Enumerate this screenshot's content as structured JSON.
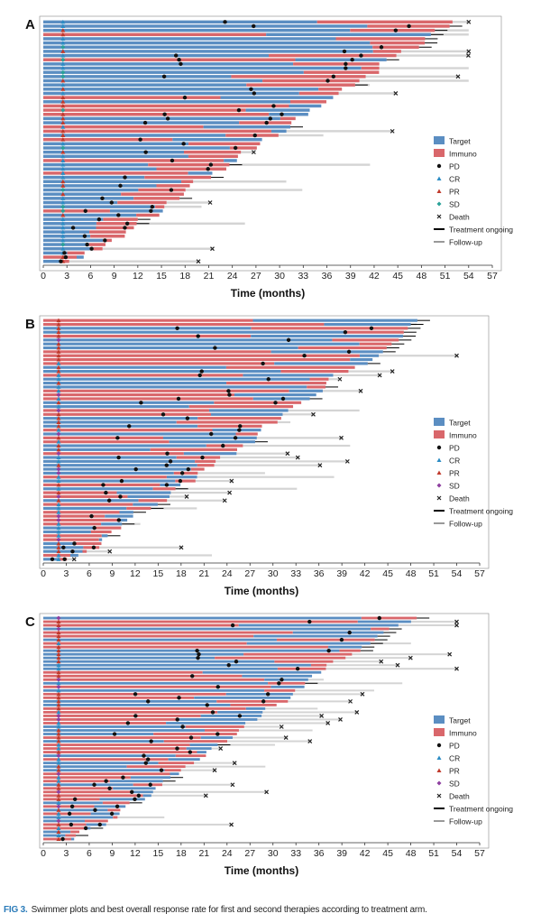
{
  "caption": {
    "figure_label": "FIG 3.",
    "text": "Swimmer plots and best overall response rate for first and second therapies according to treatment arm."
  },
  "colors": {
    "target": "#5b8ec2",
    "immuno": "#d9676b",
    "followup": "#d4d4d4",
    "pd": "#111111",
    "cr": "#2b8cc4",
    "pr": "#c0392b",
    "sd_a": "#2aa198",
    "sd_bc": "#8e3fa0",
    "death": "#222222",
    "ongoing": "#000000"
  },
  "chart_data": [
    {
      "panel": "A",
      "type": "swimmer",
      "xlabel": "Time (months)",
      "xlim": [
        0,
        57
      ],
      "xticks": [
        0,
        3,
        6,
        9,
        12,
        15,
        18,
        21,
        24,
        27,
        30,
        33,
        36,
        39,
        42,
        45,
        48,
        51,
        54,
        57
      ],
      "legend": [
        "Target",
        "Immuno",
        "PD",
        "CR",
        "PR",
        "SD",
        "Death",
        "Treatment ongoing",
        "Follow-up"
      ],
      "sd_color": "sd_a",
      "n_patients": 58,
      "treatment_start": 2.5,
      "seed": 11
    },
    {
      "panel": "B",
      "type": "swimmer",
      "xlabel": "Time (months)",
      "xlim": [
        0,
        57
      ],
      "xticks": [
        0,
        3,
        6,
        9,
        12,
        15,
        18,
        21,
        24,
        27,
        30,
        33,
        36,
        39,
        42,
        45,
        48,
        51,
        54,
        57
      ],
      "legend": [
        "Target",
        "Immuno",
        "PD",
        "CR",
        "PR",
        "SD",
        "Death",
        "Treatment ongoing",
        "Follow-up"
      ],
      "sd_color": "sd_bc",
      "n_patients": 62,
      "treatment_start": 2.0,
      "seed": 27
    },
    {
      "panel": "C",
      "type": "swimmer",
      "xlabel": "Time (months)",
      "xlim": [
        0,
        57
      ],
      "xticks": [
        0,
        3,
        6,
        9,
        12,
        15,
        18,
        21,
        24,
        27,
        30,
        33,
        36,
        39,
        42,
        45,
        48,
        51,
        54,
        57
      ],
      "legend": [
        "Target",
        "Immuno",
        "PD",
        "CR",
        "PR",
        "SD",
        "Death",
        "Treatment ongoing",
        "Follow-up"
      ],
      "sd_color": "sd_bc",
      "n_patients": 62,
      "treatment_start": 2.0,
      "seed": 43
    }
  ]
}
